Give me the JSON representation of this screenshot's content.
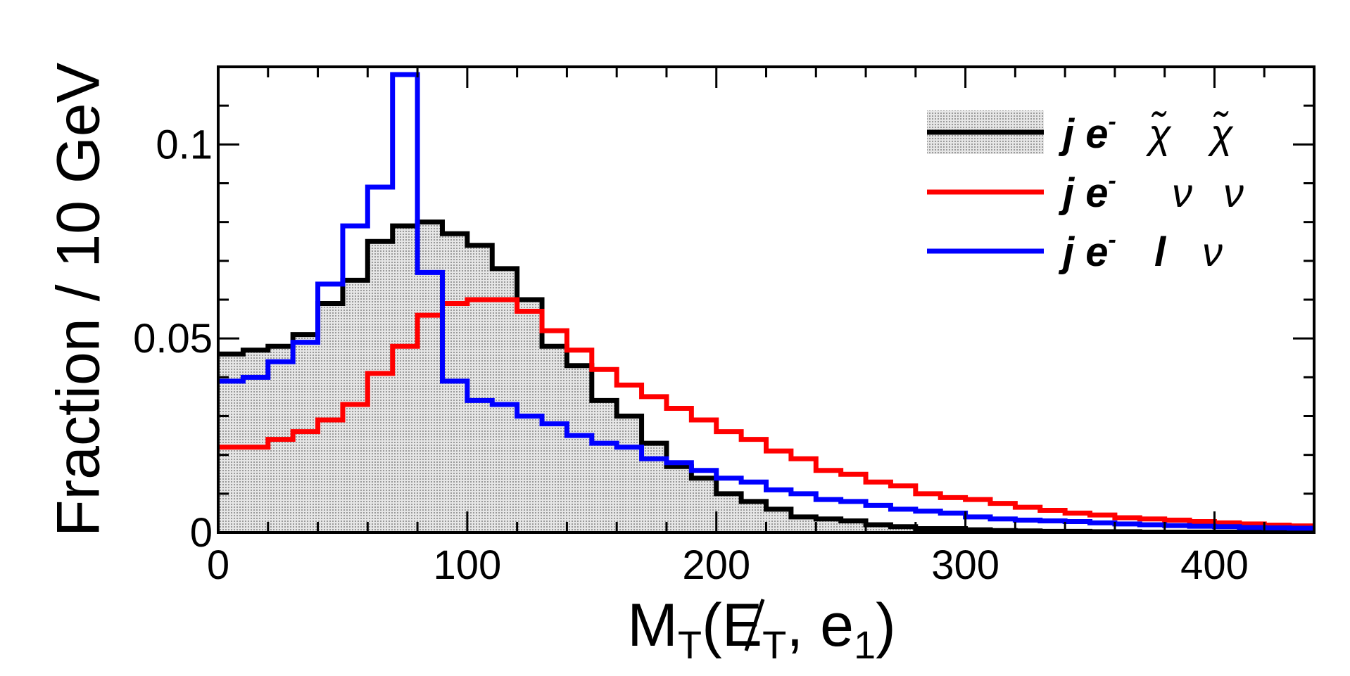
{
  "chart_data": {
    "type": "step-histogram",
    "title": "",
    "xlabel": "M_T(E_T, e_1)",
    "xlabel_parts": {
      "m": "M",
      "m_sub": "T",
      "open": "(",
      "met": "E",
      "met_sub": "T",
      "sep": ", e",
      "e_sub": "1",
      "close": ")"
    },
    "ylabel": "Fraction / 10 GeV",
    "xlim": [
      0,
      440
    ],
    "ylim": [
      0,
      0.12
    ],
    "bin_width": 10,
    "x_ticks": [
      {
        "value": 0,
        "label": "0"
      },
      {
        "value": 100,
        "label": "100"
      },
      {
        "value": 200,
        "label": "200"
      },
      {
        "value": 300,
        "label": "300"
      },
      {
        "value": 400,
        "label": "400"
      }
    ],
    "y_ticks": [
      {
        "value": 0,
        "label": "0"
      },
      {
        "value": 0.05,
        "label": "0.05"
      },
      {
        "value": 0.1,
        "label": "0.1"
      }
    ],
    "legend_position": "top-right",
    "series": [
      {
        "name": "j e- χ̃ χ̃",
        "label_parts": [
          "j e",
          "-",
          "χ̃",
          "χ̃"
        ],
        "color": "#000000",
        "filled": true,
        "fill_color": "#d4d4d4",
        "values": [
          0.046,
          0.047,
          0.048,
          0.051,
          0.059,
          0.065,
          0.075,
          0.079,
          0.08,
          0.077,
          0.074,
          0.068,
          0.06,
          0.048,
          0.043,
          0.034,
          0.03,
          0.023,
          0.017,
          0.014,
          0.01,
          0.008,
          0.006,
          0.004,
          0.0035,
          0.003,
          0.002,
          0.0015,
          0.001,
          0.001,
          0.0007,
          0.0005,
          0.0004,
          0.0003,
          0.0003,
          0.0002,
          0.0002,
          0.0001,
          0.0001,
          0.0001,
          0.0001,
          0.0001,
          0.0001,
          0.0001
        ]
      },
      {
        "name": "j e- ν ν",
        "label_parts": [
          "j e",
          "-",
          "ν",
          "ν"
        ],
        "color": "#ff0000",
        "filled": false,
        "values": [
          0.022,
          0.022,
          0.024,
          0.026,
          0.029,
          0.033,
          0.041,
          0.048,
          0.056,
          0.059,
          0.06,
          0.06,
          0.057,
          0.052,
          0.047,
          0.042,
          0.038,
          0.035,
          0.032,
          0.029,
          0.026,
          0.024,
          0.021,
          0.019,
          0.016,
          0.015,
          0.013,
          0.012,
          0.01,
          0.009,
          0.0085,
          0.0075,
          0.0065,
          0.0057,
          0.005,
          0.0045,
          0.0038,
          0.0035,
          0.0032,
          0.0028,
          0.0025,
          0.0022,
          0.0019,
          0.0017
        ]
      },
      {
        "name": "j e- l ν",
        "label_parts": [
          "j e",
          "-",
          "l",
          "ν"
        ],
        "color": "#0000ff",
        "filled": false,
        "values": [
          0.039,
          0.04,
          0.044,
          0.049,
          0.064,
          0.079,
          0.089,
          0.118,
          0.067,
          0.039,
          0.034,
          0.033,
          0.03,
          0.028,
          0.025,
          0.023,
          0.022,
          0.019,
          0.018,
          0.016,
          0.014,
          0.013,
          0.011,
          0.01,
          0.0085,
          0.008,
          0.007,
          0.006,
          0.0055,
          0.005,
          0.004,
          0.0035,
          0.0032,
          0.003,
          0.0028,
          0.0025,
          0.0022,
          0.002,
          0.0018,
          0.0016,
          0.0015,
          0.0013,
          0.0012,
          0.0011
        ]
      }
    ]
  }
}
